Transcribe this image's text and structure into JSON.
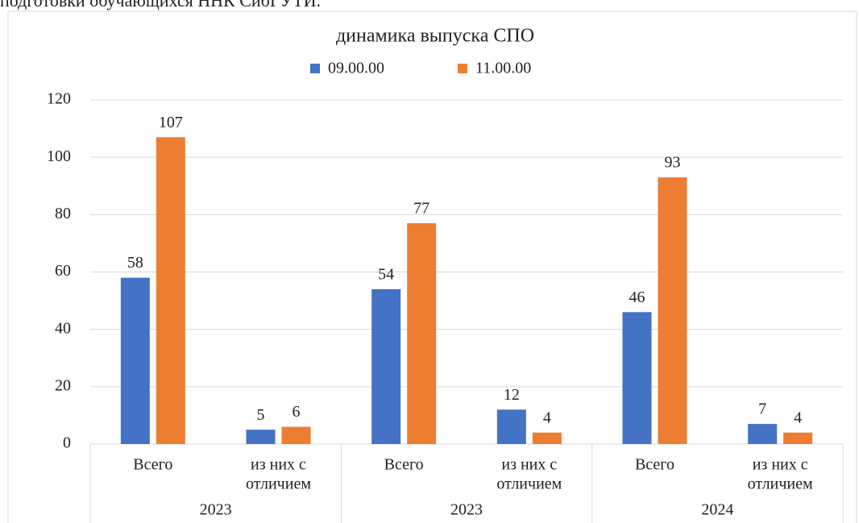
{
  "caption": "подготовки обучающихся ННК СибГУТИ.",
  "chart_data": {
    "type": "bar",
    "title": "динамика выпуска СПО",
    "categories": [
      [
        "Всего"
      ],
      [
        "из них с",
        "отличием"
      ],
      [
        "Всего"
      ],
      [
        "из них с",
        "отличием"
      ],
      [
        "Всего"
      ],
      [
        "из них с",
        "отличием"
      ]
    ],
    "groups": [
      "2023",
      "2023",
      "2024"
    ],
    "series": [
      {
        "name": "09.00.00",
        "color": "#4472c4",
        "values": [
          58,
          5,
          54,
          12,
          46,
          7
        ]
      },
      {
        "name": "11.00.00",
        "color": "#ed7d31",
        "values": [
          107,
          6,
          77,
          4,
          93,
          4
        ]
      }
    ],
    "ylim": [
      0,
      120
    ],
    "yticks": [
      0,
      20,
      40,
      60,
      80,
      100,
      120
    ],
    "grid": true,
    "legend": "top"
  }
}
